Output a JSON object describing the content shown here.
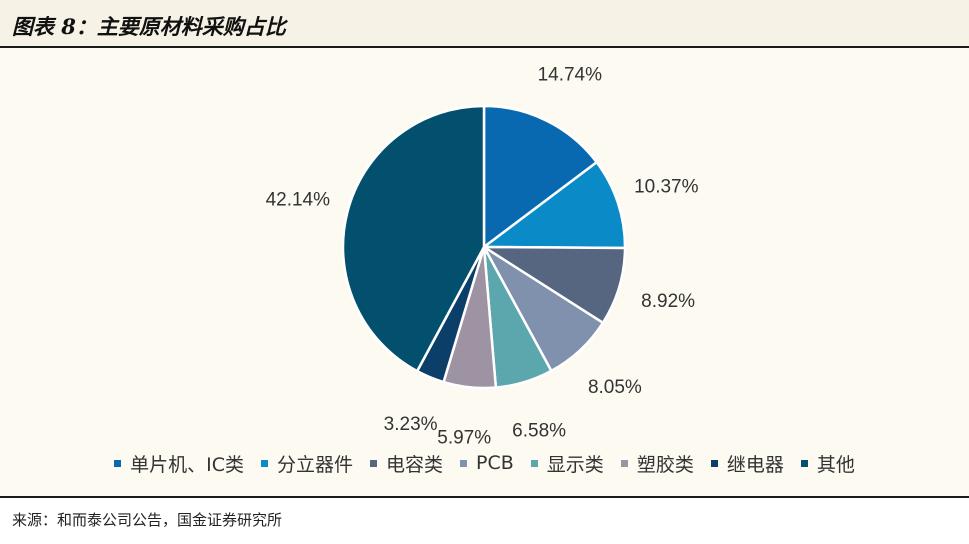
{
  "header": {
    "title": "图表 8：主要原材料采购占比"
  },
  "footer": {
    "source": "来源：和而泰公司公告，国金证券研究所"
  },
  "chart_data": {
    "type": "pie",
    "categories": [
      "单片机、IC类",
      "分立器件",
      "电容类",
      "PCB",
      "显示类",
      "塑胶类",
      "继电器",
      "其他"
    ],
    "values": [
      14.74,
      10.37,
      8.92,
      8.05,
      6.58,
      5.97,
      3.23,
      42.14
    ],
    "data_labels": [
      "14.74%",
      "10.37%",
      "8.92%",
      "8.05%",
      "6.58%",
      "5.97%",
      "3.23%",
      "42.14%"
    ],
    "colors": [
      "#0868b0",
      "#0a8bc8",
      "#566681",
      "#8091ad",
      "#5ba7ad",
      "#9e93a2",
      "#0b3f6a",
      "#02506e"
    ],
    "legend_position": "bottom",
    "start": "12 o'clock, clockwise"
  }
}
